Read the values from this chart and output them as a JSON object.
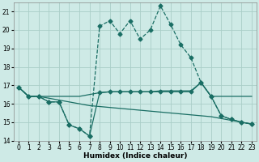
{
  "xlabel": "Humidex (Indice chaleur)",
  "bg_color": "#ceeae6",
  "grid_color": "#aacec8",
  "line_color": "#1a6e64",
  "xlim": [
    -0.5,
    23.5
  ],
  "ylim": [
    14,
    21.5
  ],
  "xticks": [
    0,
    1,
    2,
    3,
    4,
    5,
    6,
    7,
    8,
    9,
    10,
    11,
    12,
    13,
    14,
    15,
    16,
    17,
    18,
    19,
    20,
    21,
    22,
    23
  ],
  "yticks": [
    14,
    15,
    16,
    17,
    18,
    19,
    20,
    21
  ],
  "series": {
    "line_main": {
      "x": [
        0,
        1,
        2,
        3,
        4,
        5,
        6,
        7,
        8,
        9,
        10,
        11,
        12,
        13,
        14,
        15,
        16,
        17,
        18,
        19,
        20,
        21,
        22,
        23
      ],
      "y": [
        16.9,
        16.4,
        16.4,
        16.1,
        16.1,
        14.85,
        14.65,
        14.25,
        20.2,
        20.5,
        19.8,
        20.5,
        19.5,
        20.0,
        21.3,
        20.3,
        19.2,
        18.5,
        17.15,
        16.4,
        15.35,
        15.15,
        15.0,
        14.9
      ]
    },
    "line_flat_high": {
      "x": [
        0,
        1,
        2,
        3,
        4,
        5,
        6,
        7,
        8,
        9,
        10,
        11,
        12,
        13,
        14,
        15,
        16,
        17,
        18,
        19,
        20,
        21,
        22,
        23
      ],
      "y": [
        16.9,
        16.4,
        16.4,
        16.4,
        16.4,
        16.4,
        16.4,
        16.5,
        16.6,
        16.65,
        16.65,
        16.65,
        16.65,
        16.65,
        16.7,
        16.7,
        16.7,
        16.7,
        17.15,
        16.4,
        16.4,
        16.4,
        16.4,
        16.4
      ]
    },
    "line_declining": {
      "x": [
        0,
        1,
        2,
        3,
        4,
        5,
        6,
        7,
        8,
        9,
        10,
        11,
        12,
        13,
        14,
        15,
        16,
        17,
        18,
        19,
        20,
        21,
        22,
        23
      ],
      "y": [
        16.9,
        16.4,
        16.4,
        16.3,
        16.2,
        16.1,
        16.0,
        15.9,
        15.85,
        15.8,
        15.75,
        15.7,
        15.65,
        15.6,
        15.55,
        15.5,
        15.45,
        15.4,
        15.35,
        15.3,
        15.2,
        15.1,
        15.0,
        14.9
      ]
    },
    "line_v_shape": {
      "x": [
        0,
        1,
        2,
        3,
        4,
        5,
        6,
        7,
        8,
        9,
        10,
        11,
        12,
        13,
        14,
        15,
        16,
        17,
        18,
        19,
        20,
        21,
        22,
        23
      ],
      "y": [
        16.9,
        16.4,
        16.4,
        16.1,
        16.1,
        14.85,
        14.65,
        14.25,
        16.6,
        16.65,
        16.65,
        16.65,
        16.65,
        16.65,
        16.65,
        16.65,
        16.65,
        16.65,
        17.15,
        16.4,
        15.35,
        15.15,
        15.0,
        14.9
      ]
    }
  }
}
